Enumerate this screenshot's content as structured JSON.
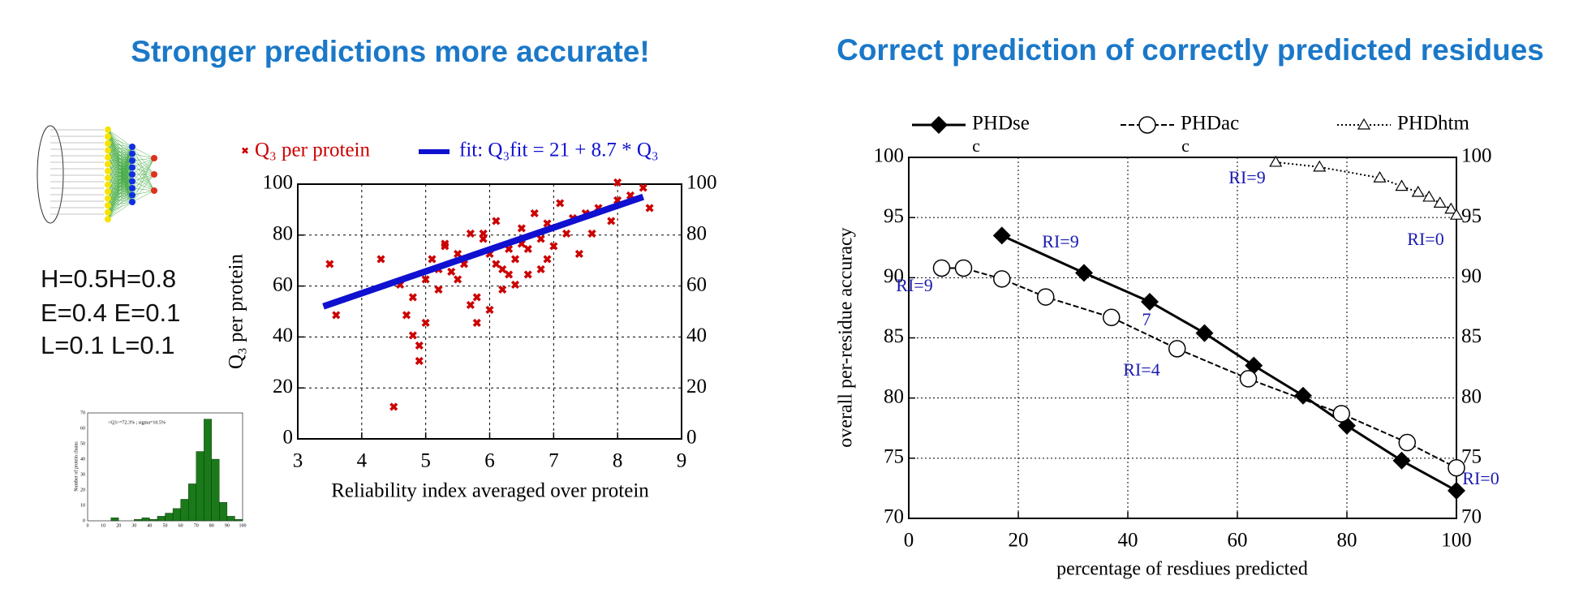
{
  "slide_titles": [
    "Stronger predictions more accurate!",
    "Correct prediction of correctly predicted residues"
  ],
  "text_block": {
    "lines": [
      "H=0.5H=0.8",
      "E=0.4 E=0.1",
      "L=0.1 L=0.1"
    ]
  },
  "chart_data": [
    {
      "type": "scatter",
      "xlabel": "Reliability index averaged over protein",
      "ylabel": "Q₃ per protein",
      "xlim": [
        3,
        9
      ],
      "xticks": [
        3,
        4,
        5,
        6,
        7,
        8,
        9
      ],
      "ylim": [
        0,
        100
      ],
      "yticks": [
        0,
        20,
        40,
        60,
        80,
        100
      ],
      "grid": true,
      "series": [
        {
          "name": "Q₃ per protein",
          "color": "#cc0000",
          "mode": "markers",
          "x": [
            3.5,
            3.6,
            4.3,
            4.5,
            4.6,
            4.7,
            4.8,
            4.9,
            5.0,
            5.1,
            5.2,
            5.3,
            5.4,
            5.5,
            5.6,
            5.7,
            5.8,
            5.9,
            6.0,
            6.1,
            6.2,
            6.3,
            6.4,
            6.5,
            6.6,
            6.7,
            6.8,
            6.9,
            7.0,
            7.1,
            7.2,
            7.3,
            7.5,
            7.7,
            7.9,
            8.0,
            8.2,
            8.4,
            5.8,
            6.0,
            6.2,
            6.4,
            5.5,
            5.7,
            6.6,
            6.9,
            7.4,
            4.8,
            5.2,
            5.3,
            6.1,
            6.3,
            5.9,
            6.5,
            6.8,
            7.6,
            8.5,
            5.0,
            4.9,
            8.0
          ],
          "values": [
            68,
            48,
            70,
            12,
            60,
            48,
            40,
            30,
            62,
            70,
            58,
            75,
            65,
            72,
            68,
            80,
            55,
            78,
            72,
            85,
            66,
            74,
            70,
            82,
            64,
            88,
            78,
            70,
            75,
            92,
            80,
            86,
            88,
            90,
            85,
            100,
            95,
            98,
            45,
            50,
            58,
            60,
            62,
            52,
            74,
            84,
            72,
            55,
            66,
            76,
            68,
            64,
            80,
            76,
            66,
            80,
            90,
            45,
            36,
            93
          ]
        },
        {
          "name": "fit: Q₃fit = 21 + 8.7 * Q₃",
          "color": "#1010d0",
          "mode": "line",
          "x": [
            3.4,
            8.4
          ],
          "values": [
            52,
            95
          ]
        }
      ]
    },
    {
      "type": "histogram",
      "title": "<Q3>=72.3% ; sigma=10.5%",
      "ylabel": "Number of protein chains",
      "bins": [
        0,
        5,
        10,
        15,
        20,
        25,
        30,
        35,
        40,
        45,
        50,
        55,
        60,
        65,
        70,
        75,
        80,
        85,
        90,
        95,
        100
      ],
      "values": [
        0,
        0,
        0,
        2,
        0,
        0,
        1,
        2,
        1,
        3,
        5,
        8,
        14,
        24,
        45,
        66,
        40,
        12,
        3,
        1
      ],
      "color": "#1a7a1a",
      "xlim": [
        0,
        100
      ],
      "xticks": [
        0,
        10,
        20,
        30,
        40,
        50,
        60,
        70,
        80,
        90,
        100
      ],
      "ylim": [
        0,
        70
      ],
      "yticks": [
        0,
        10,
        20,
        30,
        40,
        50,
        60,
        70
      ]
    },
    {
      "type": "line",
      "xlabel": "percentage of resdiues predicted",
      "ylabel": "overall per-residue accuracy",
      "xlim": [
        0,
        100
      ],
      "xticks": [
        0,
        20,
        40,
        60,
        80,
        100
      ],
      "ylim": [
        70,
        100
      ],
      "yticks": [
        70,
        75,
        80,
        85,
        90,
        95,
        100
      ],
      "grid": true,
      "series": [
        {
          "name": "PHDse",
          "color": "#000000",
          "marker": "diamond",
          "dash": "solid",
          "x": [
            17,
            32,
            44,
            54,
            63,
            72,
            80,
            90,
            100
          ],
          "values": [
            93.5,
            90.4,
            88,
            85.4,
            82.7,
            80.2,
            77.7,
            74.8,
            72.3
          ]
        },
        {
          "name": "PHDac",
          "color": "#000000",
          "marker": "circle",
          "dash": "dashed",
          "x": [
            6,
            10,
            17,
            25,
            37,
            49,
            62,
            79,
            91,
            100
          ],
          "values": [
            90.8,
            90.8,
            89.9,
            88.4,
            86.7,
            84.1,
            81.6,
            78.7,
            76.3,
            74.2
          ]
        },
        {
          "name": "PHDhtm",
          "color": "#000000",
          "marker": "triangle",
          "dash": "dotted",
          "x": [
            67,
            75,
            86,
            90,
            93,
            95,
            97,
            99,
            100
          ],
          "values": [
            99.6,
            99.2,
            98.3,
            97.6,
            97.1,
            96.7,
            96.2,
            95.7,
            95.2
          ]
        }
      ],
      "annotations": [
        "RI=9",
        "RI=0",
        "RI=9",
        "RI=9",
        "7",
        "RI=4",
        "RI=0",
        "c",
        "c"
      ]
    }
  ]
}
